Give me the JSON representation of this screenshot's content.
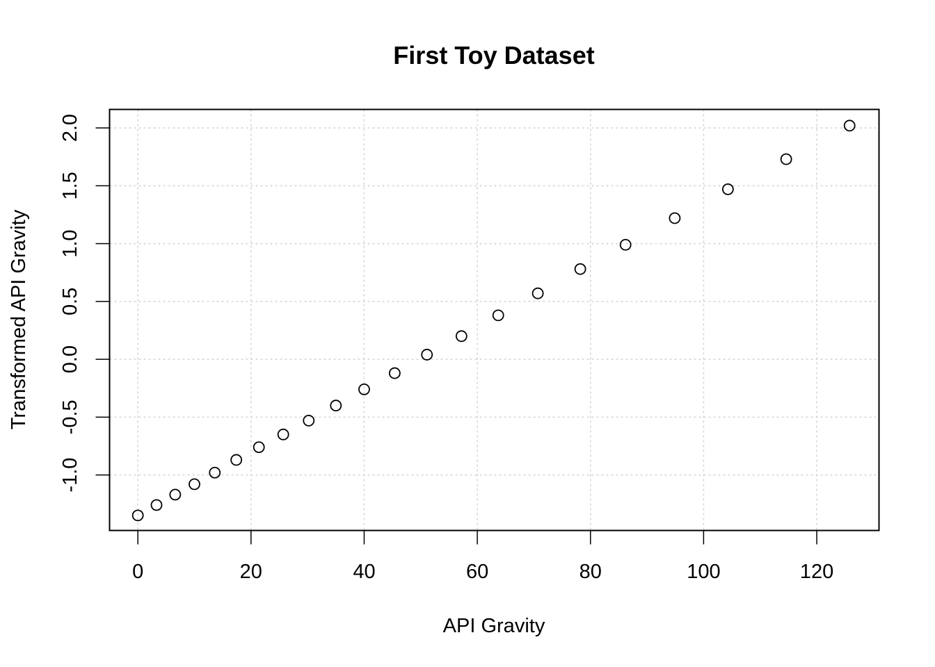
{
  "chart_data": {
    "type": "scatter",
    "title": "First Toy Dataset",
    "xlabel": "API Gravity",
    "ylabel": "Transformed API Gravity",
    "xlim": [
      -5,
      131
    ],
    "ylim": [
      -1.48,
      2.16
    ],
    "xticks": [
      0,
      20,
      40,
      60,
      80,
      100,
      120
    ],
    "xtick_labels": [
      "0",
      "20",
      "40",
      "60",
      "80",
      "100",
      "120"
    ],
    "yticks": [
      -1.0,
      -0.5,
      0.0,
      0.5,
      1.0,
      1.5,
      2.0
    ],
    "ytick_labels": [
      "-1.0",
      "-0.5",
      "0.0",
      "0.5",
      "1.0",
      "1.5",
      "2.0"
    ],
    "grid": true,
    "marker": "open-circle",
    "points": [
      {
        "x": 0.0,
        "y": -1.35
      },
      {
        "x": 3.3,
        "y": -1.26
      },
      {
        "x": 6.6,
        "y": -1.17
      },
      {
        "x": 10.0,
        "y": -1.08
      },
      {
        "x": 13.6,
        "y": -0.98
      },
      {
        "x": 17.4,
        "y": -0.87
      },
      {
        "x": 21.4,
        "y": -0.76
      },
      {
        "x": 25.7,
        "y": -0.65
      },
      {
        "x": 30.2,
        "y": -0.53
      },
      {
        "x": 35.0,
        "y": -0.4
      },
      {
        "x": 40.0,
        "y": -0.26
      },
      {
        "x": 45.4,
        "y": -0.12
      },
      {
        "x": 51.1,
        "y": 0.04
      },
      {
        "x": 57.2,
        "y": 0.2
      },
      {
        "x": 63.7,
        "y": 0.38
      },
      {
        "x": 70.7,
        "y": 0.57
      },
      {
        "x": 78.2,
        "y": 0.78
      },
      {
        "x": 86.2,
        "y": 0.99
      },
      {
        "x": 94.9,
        "y": 1.22
      },
      {
        "x": 104.3,
        "y": 1.47
      },
      {
        "x": 114.6,
        "y": 1.73
      },
      {
        "x": 125.8,
        "y": 2.02
      }
    ],
    "colors": {
      "points": "#000000",
      "grid": "#d3d3d3",
      "axis": "#000000"
    }
  }
}
